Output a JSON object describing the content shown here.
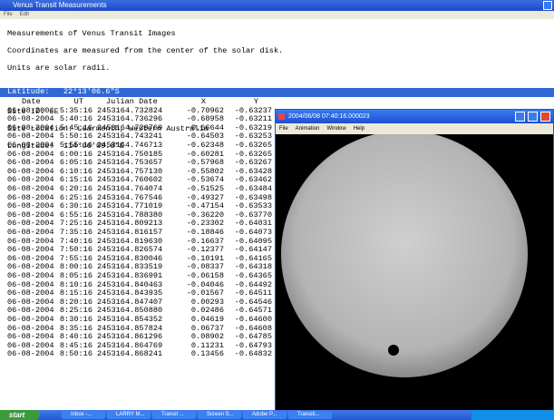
{
  "window": {
    "title": "Venus Transit Measurements",
    "menu": [
      "File",
      "Edit"
    ]
  },
  "header": {
    "lines": [
      "Measurements of Venus Transit Images",
      "Coordinates are measured from the center of the solar disk.",
      "Units are solar radii."
    ],
    "site_id": "Site ID: LE",
    "site_location": "Site Location: Learmonth, Western Australia",
    "longitude": "Longitude:  114°06'09.8\"E",
    "latitude": "Latitude:   22°13'06.6\"S"
  },
  "table": {
    "columns": [
      "Date",
      "UT",
      "Julian Date",
      "X",
      "Y"
    ],
    "rows": [
      [
        "06-08-2004",
        "5:35:16",
        "2453164.732824",
        "-0.70962",
        "-0.63237"
      ],
      [
        "06-08-2004",
        "5:40:16",
        "2453164.736296",
        "-0.68958",
        "-0.63211"
      ],
      [
        "06-08-2004",
        "5:45:16",
        "2453164.739769",
        "-0.66644",
        "-0.63219"
      ],
      [
        "06-08-2004",
        "5:50:16",
        "2453164.743241",
        "-0.64503",
        "-0.63253"
      ],
      [
        "06-08-2004",
        "5:55:16",
        "2453164.746713",
        "-0.62348",
        "-0.63265"
      ],
      [
        "06-08-2004",
        "6:00:16",
        "2453164.750185",
        "-0.60281",
        "-0.63265"
      ],
      [
        "06-08-2004",
        "6:05:16",
        "2453164.753657",
        "-0.57968",
        "-0.63267"
      ],
      [
        "06-08-2004",
        "6:10:16",
        "2453164.757130",
        "-0.55802",
        "-0.63428"
      ],
      [
        "06-08-2004",
        "6:15:16",
        "2453164.760602",
        "-0.53674",
        "-0.63462"
      ],
      [
        "06-08-2004",
        "6:20:16",
        "2453164.764074",
        "-0.51525",
        "-0.63484"
      ],
      [
        "06-08-2004",
        "6:25:16",
        "2453164.767546",
        "-0.49327",
        "-0.63498"
      ],
      [
        "06-08-2004",
        "6:30:16",
        "2453164.771019",
        "-0.47154",
        "-0.63533"
      ],
      [
        "06-08-2004",
        "6:55:16",
        "2453164.788380",
        "-0.36220",
        "-0.63770"
      ],
      [
        "06-08-2004",
        "7:25:16",
        "2453164.809213",
        "-0.23302",
        "-0.64031"
      ],
      [
        "06-08-2004",
        "7:35:16",
        "2453164.816157",
        "-0.18846",
        "-0.64073"
      ],
      [
        "06-08-2004",
        "7:40:16",
        "2453164.819630",
        "-0.16637",
        "-0.64095"
      ],
      [
        "06-08-2004",
        "7:50:16",
        "2453164.826574",
        "-0.12377",
        "-0.64147"
      ],
      [
        "06-08-2004",
        "7:55:16",
        "2453164.830046",
        "-0.10191",
        "-0.64165"
      ],
      [
        "06-08-2004",
        "8:00:16",
        "2453164.833519",
        "-0.08337",
        "-0.64318"
      ],
      [
        "06-08-2004",
        "8:05:16",
        "2453164.836991",
        "-0.06158",
        "-0.64365"
      ],
      [
        "06-08-2004",
        "8:10:16",
        "2453164.840463",
        "-0.04046",
        "-0.64492"
      ],
      [
        "06-08-2004",
        "8:15:16",
        "2453164.843935",
        "-0.01567",
        "-0.64511"
      ],
      [
        "06-08-2004",
        "8:20:16",
        "2453164.847407",
        "0.00293",
        "-0.64546"
      ],
      [
        "06-08-2004",
        "8:25:16",
        "2453164.850880",
        "0.02486",
        "-0.64571"
      ],
      [
        "06-08-2004",
        "8:30:16",
        "2453164.854352",
        "0.04619",
        "-0.64600"
      ],
      [
        "06-08-2004",
        "8:35:16",
        "2453164.857824",
        "0.06737",
        "-0.64608"
      ],
      [
        "06-08-2004",
        "8:40:16",
        "2453164.861296",
        "0.08902",
        "-0.64785"
      ],
      [
        "06-08-2004",
        "8:45:16",
        "2453164.864769",
        "0.11231",
        "-0.64793"
      ],
      [
        "06-08-2004",
        "8:50:16",
        "2453164.868241",
        "0.13456",
        "-0.64832"
      ]
    ]
  },
  "image_window": {
    "title": "2004/06/08     07:40:16.000023",
    "menu": [
      "File",
      "Animation",
      "Window",
      "Help"
    ]
  },
  "taskbar": {
    "start": "start",
    "items": [
      "Inbox -...",
      "LARRY M...",
      "Transit ...",
      "Screen S...",
      "Adobe P...",
      "Transiti..."
    ]
  }
}
